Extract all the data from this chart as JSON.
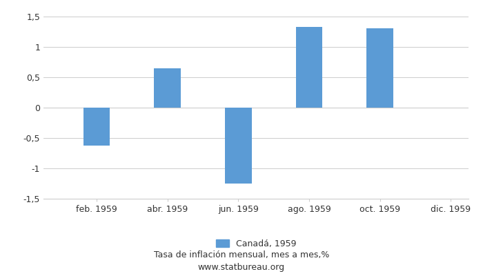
{
  "month_indices": [
    1,
    2,
    3,
    4,
    5,
    6,
    7,
    8,
    9,
    10,
    11,
    12
  ],
  "values": [
    0,
    -0.63,
    0,
    0.65,
    0,
    -1.25,
    0,
    1.33,
    0,
    1.31,
    0,
    0
  ],
  "bar_color": "#5B9BD5",
  "ylim": [
    -1.5,
    1.5
  ],
  "yticks": [
    -1.5,
    -1.0,
    -0.5,
    0,
    0.5,
    1.0,
    1.5
  ],
  "ytick_labels": [
    "-1,5",
    "-1",
    "-0,5",
    "0",
    "0,5",
    "1",
    "1,5"
  ],
  "xtick_positions": [
    2,
    4,
    6,
    8,
    10,
    12
  ],
  "xtick_labels": [
    "feb. 1959",
    "abr. 1959",
    "jun. 1959",
    "ago. 1959",
    "oct. 1959",
    "dic. 1959"
  ],
  "legend_label": "Canadá, 1959",
  "subtitle": "Tasa de inflación mensual, mes a mes,%",
  "website": "www.statbureau.org",
  "grid_color": "#CCCCCC",
  "bar_width": 0.75,
  "text_color": "#333333"
}
